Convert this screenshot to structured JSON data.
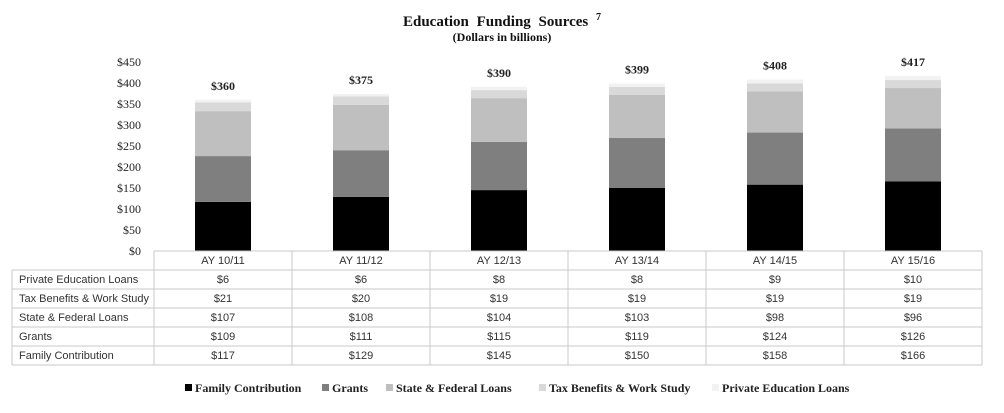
{
  "chart_data": {
    "type": "bar",
    "stacked": true,
    "title": "Education Funding Sources",
    "title_footnote": "7",
    "subtitle": "(Dollars in billions)",
    "xlabel": "",
    "ylabel": "",
    "ylim": [
      0,
      450
    ],
    "y_ticks": [
      {
        "value": 0,
        "label": "$0"
      },
      {
        "value": 50,
        "label": "$50"
      },
      {
        "value": 100,
        "label": "$100"
      },
      {
        "value": 150,
        "label": "$150"
      },
      {
        "value": 200,
        "label": "$200"
      },
      {
        "value": 250,
        "label": "$250"
      },
      {
        "value": 300,
        "label": "$300"
      },
      {
        "value": 350,
        "label": "$350"
      },
      {
        "value": 400,
        "label": "$400"
      },
      {
        "value": 450,
        "label": "$450"
      }
    ],
    "categories": [
      "AY 10/11",
      "AY 11/12",
      "AY 12/13",
      "AY 13/14",
      "AY 14/15",
      "AY 15/16"
    ],
    "totals": [
      "$360",
      "$375",
      "$390",
      "$399",
      "$408",
      "$417"
    ],
    "series": [
      {
        "name": "Family Contribution",
        "color": "#000000",
        "values": [
          117,
          129,
          145,
          150,
          158,
          166
        ],
        "labels": [
          "$117",
          "$129",
          "$145",
          "$150",
          "$158",
          "$166"
        ]
      },
      {
        "name": "Grants",
        "color": "#7f7f7f",
        "values": [
          109,
          111,
          115,
          119,
          124,
          126
        ],
        "labels": [
          "$109",
          "$111",
          "$115",
          "$119",
          "$124",
          "$126"
        ]
      },
      {
        "name": "State & Federal Loans",
        "color": "#bfbfbf",
        "values": [
          107,
          108,
          104,
          103,
          98,
          96
        ],
        "labels": [
          "$107",
          "$108",
          "$104",
          "$103",
          "$98",
          "$96"
        ]
      },
      {
        "name": "Tax Benefits & Work Study",
        "color": "#d9d9d9",
        "values": [
          21,
          20,
          19,
          19,
          19,
          19
        ],
        "labels": [
          "$21",
          "$20",
          "$19",
          "$19",
          "$19",
          "$19"
        ]
      },
      {
        "name": "Private Education Loans",
        "color": "#f2f2f2",
        "values": [
          6,
          6,
          8,
          8,
          9,
          10
        ],
        "labels": [
          "$6",
          "$6",
          "$8",
          "$8",
          "$9",
          "$10"
        ]
      }
    ],
    "table_row_order": [
      "Private Education Loans",
      "Tax Benefits & Work Study",
      "State & Federal Loans",
      "Grants",
      "Family Contribution"
    ],
    "legend_position": "bottom",
    "grid": false
  }
}
